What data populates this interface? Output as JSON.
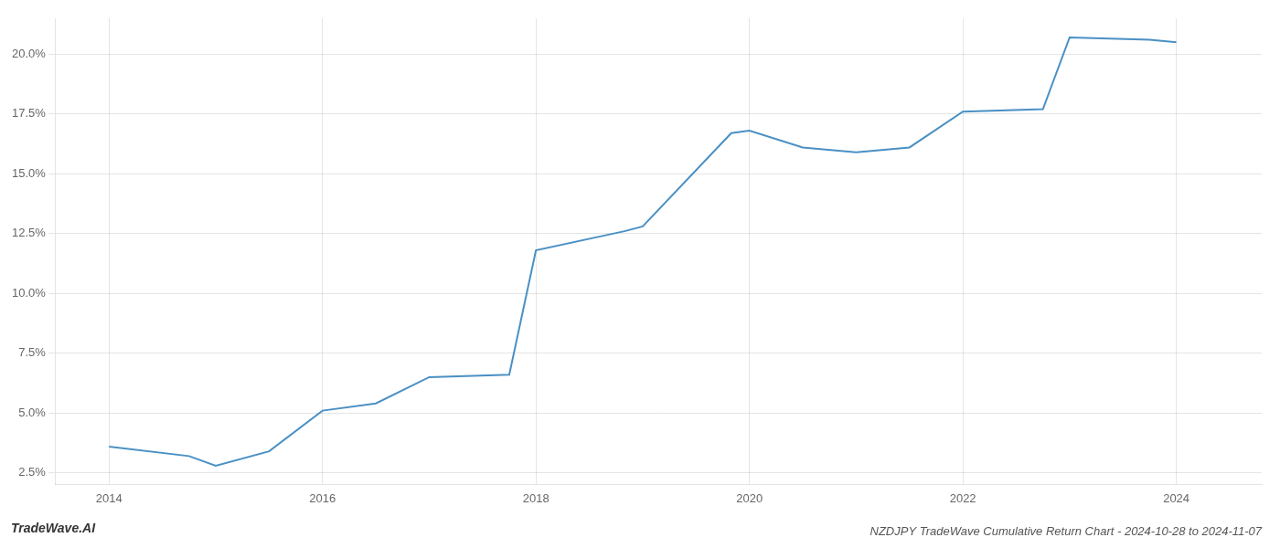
{
  "chart_data": {
    "type": "line",
    "title": "NZDJPY TradeWave Cumulative Return Chart - 2024-10-28 to 2024-11-07",
    "annotations": [
      "TradeWave.AI"
    ],
    "x": [
      2014,
      2014.75,
      2015,
      2015.5,
      2016,
      2016.5,
      2017,
      2017.75,
      2018,
      2018.83,
      2019,
      2019.83,
      2020,
      2020.5,
      2021,
      2021.5,
      2022,
      2022.75,
      2023,
      2023.75,
      2024
    ],
    "values": [
      3.6,
      3.2,
      2.8,
      3.4,
      5.1,
      5.4,
      6.5,
      6.6,
      11.8,
      12.6,
      12.8,
      16.7,
      16.8,
      16.1,
      15.9,
      16.1,
      17.6,
      17.7,
      20.7,
      20.6,
      20.5
    ],
    "color": "#4a90c4",
    "xlim": [
      2013.5,
      2024.8
    ],
    "ylim": [
      2.0,
      21.5
    ],
    "xticks": [
      2014,
      2016,
      2018,
      2020,
      2022,
      2024
    ],
    "yticks": [
      {
        "value": 2.5,
        "label": "2.5%"
      },
      {
        "value": 5.0,
        "label": "5.0%"
      },
      {
        "value": 7.5,
        "label": "7.5%"
      },
      {
        "value": 10.0,
        "label": "10.0%"
      },
      {
        "value": 12.5,
        "label": "12.5%"
      },
      {
        "value": 15.0,
        "label": "15.0%"
      },
      {
        "value": 17.5,
        "label": "17.5%"
      },
      {
        "value": 20.0,
        "label": "20.0%"
      }
    ],
    "grid": true
  }
}
